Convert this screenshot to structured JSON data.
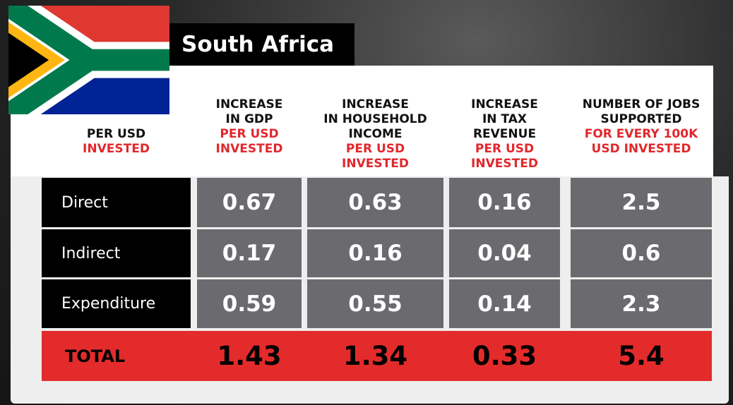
{
  "title": "South Africa",
  "columns": [
    {
      "lines": [
        "PER USD"
      ],
      "highlight": [
        "INVESTED"
      ]
    },
    {
      "lines": [
        "INCREASE",
        "IN GDP"
      ],
      "highlight": [
        "PER USD",
        "INVESTED"
      ]
    },
    {
      "lines": [
        "INCREASE",
        "IN HOUSEHOLD",
        "INCOME"
      ],
      "highlight": [
        "PER USD",
        "INVESTED"
      ]
    },
    {
      "lines": [
        "INCREASE",
        "IN TAX",
        "REVENUE"
      ],
      "highlight": [
        "PER USD",
        "INVESTED"
      ]
    },
    {
      "lines": [
        "NUMBER OF JOBS",
        "SUPPORTED"
      ],
      "highlight": [
        "FOR EVERY 100K",
        "USD INVESTED"
      ]
    }
  ],
  "rows": [
    {
      "label": "Direct",
      "values": [
        0.67,
        0.63,
        0.16,
        2.5
      ]
    },
    {
      "label": "Indirect",
      "values": [
        0.17,
        0.16,
        0.04,
        0.6
      ]
    },
    {
      "label": "Expenditure",
      "values": [
        0.59,
        0.55,
        0.14,
        2.3
      ]
    }
  ],
  "total": {
    "label": "TOTAL",
    "values": [
      1.43,
      1.34,
      0.33,
      5.4
    ]
  }
}
